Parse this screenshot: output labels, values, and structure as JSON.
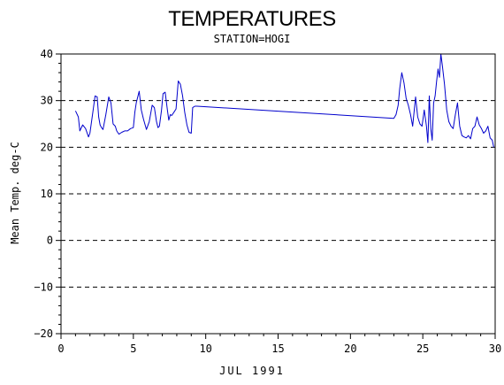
{
  "chart_data": {
    "type": "line",
    "title": "TEMPERATURES",
    "subtitle": "STATION=HOGI",
    "xlabel": "JUL 1991",
    "ylabel": "Mean Temp. deg-C",
    "xlim": [
      0,
      30
    ],
    "ylim": [
      -20,
      40
    ],
    "x_ticks": [
      0,
      5,
      10,
      15,
      20,
      25,
      30
    ],
    "y_ticks": [
      -20,
      -10,
      0,
      10,
      20,
      30,
      40
    ],
    "grid": "horizontal dashed at y ticks",
    "colors": {
      "series": "#0000cc",
      "axes": "#000000",
      "grid": "#000000"
    },
    "series": [
      {
        "x": [
          1.0,
          1.2,
          1.3,
          1.5,
          1.7,
          1.9,
          2.0,
          2.2,
          2.35,
          2.5,
          2.6,
          2.7,
          2.8,
          2.9,
          3.1,
          3.3,
          3.45,
          3.6,
          3.75,
          3.85,
          4.0,
          4.2,
          4.4,
          4.6,
          4.8,
          5.0,
          5.1,
          5.2,
          5.4,
          5.55,
          5.7,
          5.9,
          6.1,
          6.3,
          6.45,
          6.6,
          6.7,
          6.8,
          6.95,
          7.05,
          7.2,
          7.35,
          7.45,
          7.55,
          7.65,
          7.8,
          7.95,
          8.1,
          8.25,
          8.4,
          8.55,
          8.7,
          8.85,
          9.0,
          9.1,
          9.25,
          9.4,
          23.0,
          23.15,
          23.3,
          23.4,
          23.55,
          23.7,
          23.85,
          24.0,
          24.15,
          24.3,
          24.5,
          24.65,
          24.8,
          24.95,
          25.1,
          25.25,
          25.35,
          25.45,
          25.55,
          25.65,
          25.75,
          25.85,
          25.95,
          26.05,
          26.15,
          26.25,
          26.35,
          26.5,
          26.65,
          26.8,
          26.95,
          27.1,
          27.25,
          27.4,
          27.55,
          27.7,
          27.85,
          28.0,
          28.15,
          28.3,
          28.45,
          28.6,
          28.75,
          28.9,
          29.05,
          29.2,
          29.35,
          29.5,
          29.65,
          29.8,
          29.9
        ],
        "values": [
          27.8,
          26.5,
          23.5,
          24.8,
          24.0,
          22.2,
          23.0,
          27.5,
          31.0,
          30.8,
          26.5,
          24.8,
          24.2,
          23.8,
          27.0,
          30.8,
          29.5,
          25.0,
          24.5,
          23.5,
          22.8,
          23.2,
          23.5,
          23.5,
          24.0,
          24.2,
          27.5,
          29.5,
          32.0,
          28.0,
          26.0,
          23.8,
          25.5,
          29.0,
          28.5,
          25.5,
          24.2,
          24.5,
          28.0,
          31.5,
          31.8,
          28.0,
          25.8,
          27.0,
          26.8,
          27.5,
          28.2,
          34.2,
          33.5,
          31.0,
          27.5,
          24.8,
          23.2,
          23.0,
          28.5,
          28.8,
          28.8,
          26.2,
          27.0,
          29.0,
          32.5,
          36.0,
          33.8,
          30.5,
          29.0,
          27.0,
          24.5,
          30.8,
          26.5,
          25.0,
          24.5,
          28.0,
          24.5,
          21.0,
          31.0,
          24.0,
          21.5,
          29.5,
          31.0,
          34.0,
          36.8,
          35.0,
          40.0,
          37.5,
          33.5,
          28.0,
          25.5,
          24.5,
          24.0,
          27.0,
          29.5,
          24.5,
          22.5,
          22.2,
          22.0,
          22.5,
          21.8,
          24.0,
          24.5,
          26.5,
          24.8,
          24.0,
          23.0,
          23.5,
          24.5,
          22.0,
          21.5,
          20.0
        ]
      }
    ]
  }
}
